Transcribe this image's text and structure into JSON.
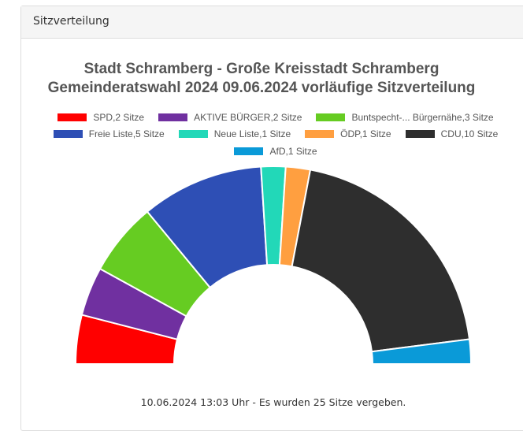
{
  "panel": {
    "title": "Sitzverteilung"
  },
  "chart_data": {
    "type": "pie",
    "variant": "half-donut (parliament seat distribution)",
    "title": "Stadt Schramberg - Große Kreisstadt Schramberg",
    "subtitle": "Gemeinderatswahl 2024 09.06.2024 vorläufige Sitzverteilung",
    "total_seats": 25,
    "categories": [
      "SPD",
      "AKTIVE BÜRGER",
      "Buntspecht-... Bürgernähe",
      "Freie Liste",
      "Neue Liste",
      "ÖDP",
      "CDU",
      "AfD"
    ],
    "values": [
      2,
      2,
      3,
      5,
      1,
      1,
      10,
      1
    ],
    "colors": [
      "#ff0000",
      "#7030a0",
      "#66cc22",
      "#2e4fb5",
      "#22d8b8",
      "#ff9f40",
      "#2e2e2e",
      "#0a9ad8"
    ],
    "legend_position": "top",
    "legend": [
      {
        "label": "SPD,2 Sitze",
        "color": "#ff0000"
      },
      {
        "label": "AKTIVE BÜRGER,2 Sitze",
        "color": "#7030a0"
      },
      {
        "label": "Buntspecht-... Bürgernähe,3 Sitze",
        "color": "#66cc22"
      },
      {
        "label": "Freie Liste,5 Sitze",
        "color": "#2e4fb5"
      },
      {
        "label": "Neue Liste,1 Sitze",
        "color": "#22d8b8"
      },
      {
        "label": "ÖDP,1 Sitze",
        "color": "#ff9f40"
      },
      {
        "label": "CDU,10 Sitze",
        "color": "#2e2e2e"
      },
      {
        "label": "AfD,1 Sitze",
        "color": "#0a9ad8"
      }
    ]
  },
  "footer": {
    "status": "10.06.2024 13:03 Uhr - Es wurden 25 Sitze vergeben."
  }
}
